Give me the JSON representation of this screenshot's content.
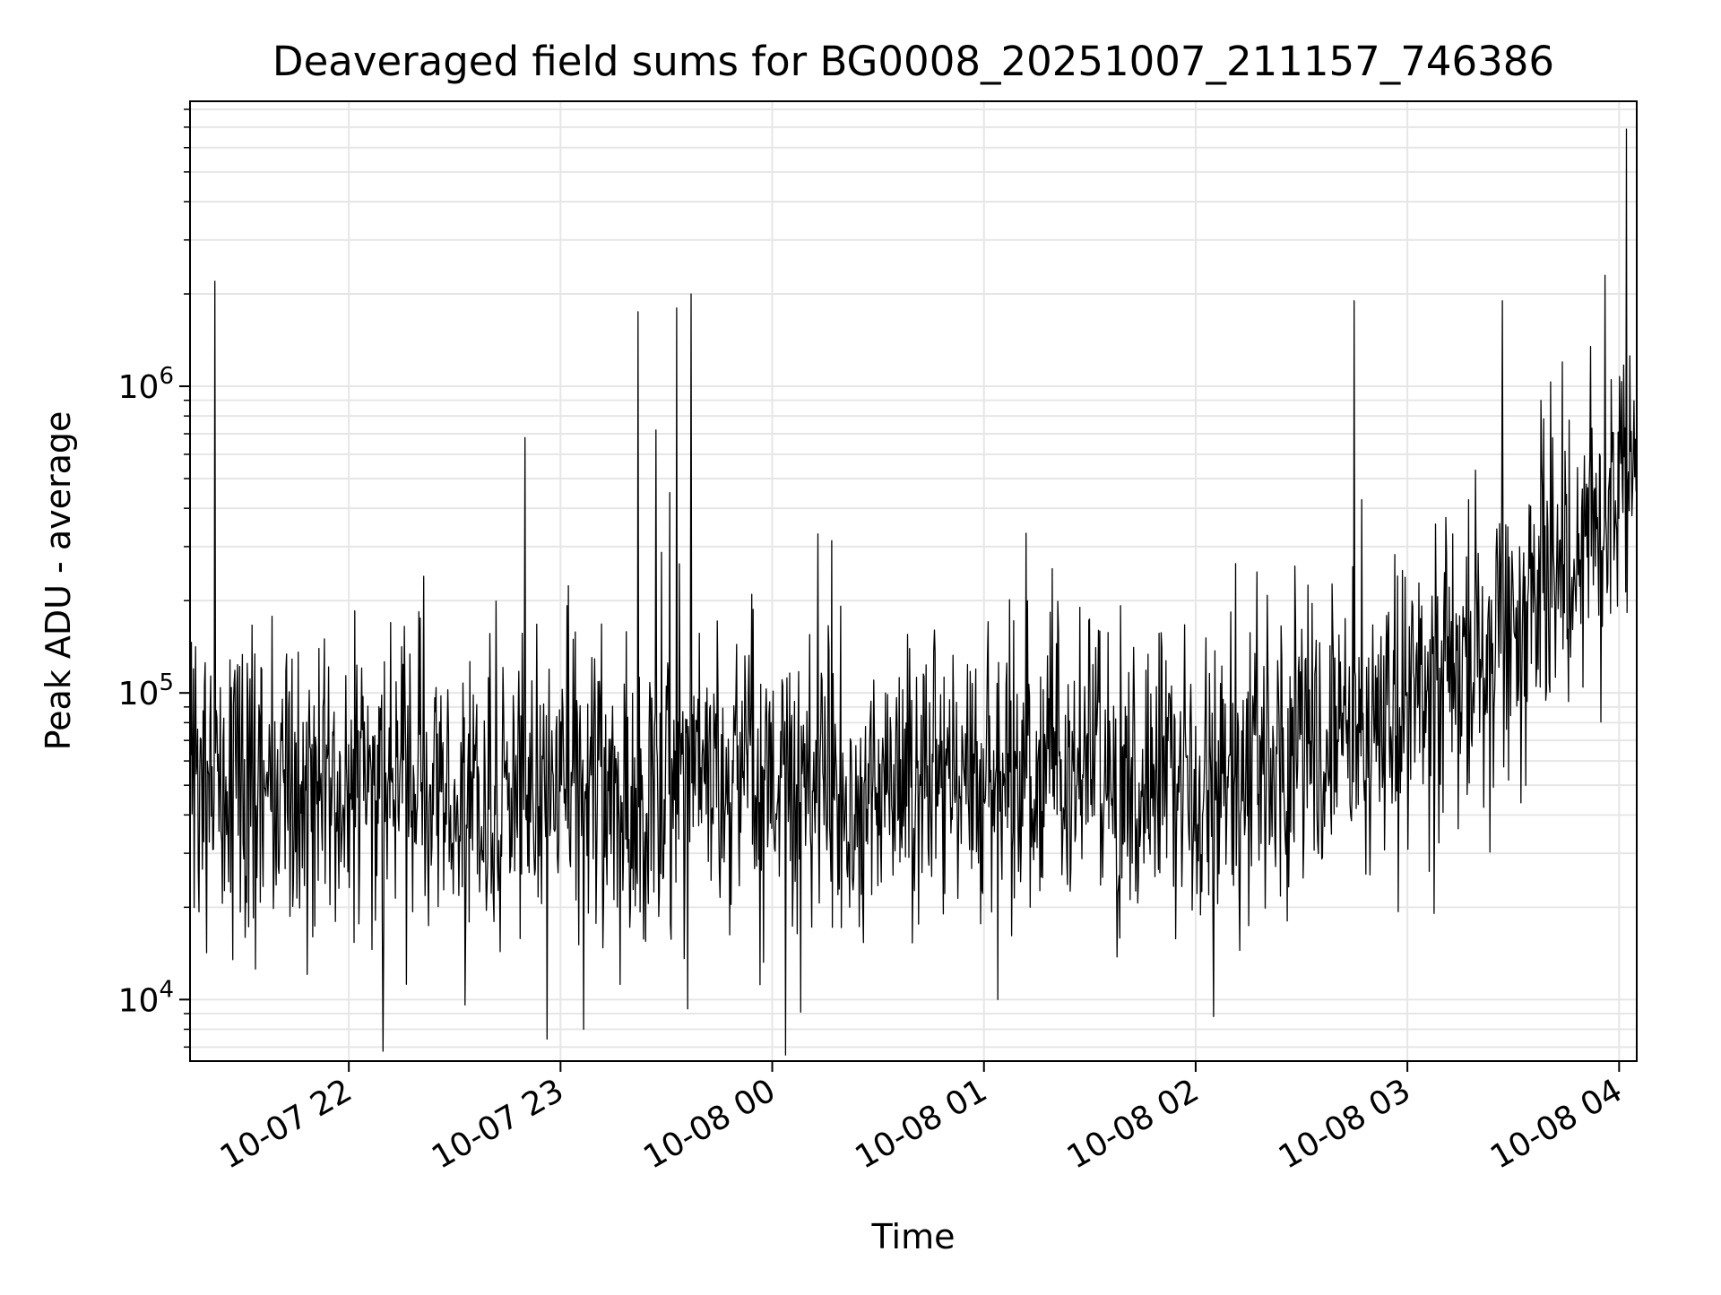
{
  "chart_data": {
    "type": "line",
    "title": "Deaveraged field sums for BG0008_20251007_211157_746386",
    "xlabel": "Time",
    "ylabel": "Peak ADU - average",
    "yscale": "log",
    "ylim": [
      6300,
      8500000
    ],
    "xlim": [
      "2025-10-07 21:15:00",
      "2025-10-08 04:05:00"
    ],
    "grid": true,
    "legend": "none",
    "line_color": "#000000",
    "grid_color": "#e6e6e6",
    "x_ticks": [
      {
        "value": "2025-10-07 22:00:00",
        "label": "10-07 22"
      },
      {
        "value": "2025-10-07 23:00:00",
        "label": "10-07 23"
      },
      {
        "value": "2025-10-08 00:00:00",
        "label": "10-08 00"
      },
      {
        "value": "2025-10-08 01:00:00",
        "label": "10-08 01"
      },
      {
        "value": "2025-10-08 02:00:00",
        "label": "10-08 02"
      },
      {
        "value": "2025-10-08 03:00:00",
        "label": "10-08 03"
      },
      {
        "value": "2025-10-08 04:00:00",
        "label": "10-08 04"
      }
    ],
    "y_ticks": [
      {
        "value": 10000,
        "base": "10",
        "exp": "4"
      },
      {
        "value": 100000,
        "base": "10",
        "exp": "5"
      },
      {
        "value": 1000000,
        "base": "10",
        "exp": "6"
      }
    ],
    "series": [
      {
        "x": [
          "2025-10-07 21:15:00",
          "2025-10-08 04:05:00"
        ],
        "baseline_y": [
          50000,
          550000
        ],
        "noise_sigma_dex": 0.24,
        "spikes": [
          {
            "x": "2025-10-07 21:22:00",
            "y": 2200000
          },
          {
            "x": "2025-10-07 21:53:00",
            "y": 150000
          },
          {
            "x": "2025-10-07 22:33:00",
            "y": 9600
          },
          {
            "x": "2025-10-07 22:50:00",
            "y": 680000
          },
          {
            "x": "2025-10-07 23:22:00",
            "y": 1750000
          },
          {
            "x": "2025-10-07 23:27:00",
            "y": 720000
          },
          {
            "x": "2025-10-07 23:31:00",
            "y": 450000
          },
          {
            "x": "2025-10-07 23:33:00",
            "y": 1800000
          },
          {
            "x": "2025-10-07 23:37:00",
            "y": 2000000
          },
          {
            "x": "2025-10-08 00:08:00",
            "y": 9100
          },
          {
            "x": "2025-10-08 00:13:00",
            "y": 330000
          },
          {
            "x": "2025-10-08 02:05:00",
            "y": 8800
          },
          {
            "x": "2025-10-08 02:45:00",
            "y": 1900000
          },
          {
            "x": "2025-10-08 03:27:00",
            "y": 1900000
          },
          {
            "x": "2025-10-08 03:44:00",
            "y": 1200000
          },
          {
            "x": "2025-10-08 03:56:00",
            "y": 2300000
          },
          {
            "x": "2025-10-08 04:02:00",
            "y": 6900000
          }
        ]
      }
    ]
  }
}
